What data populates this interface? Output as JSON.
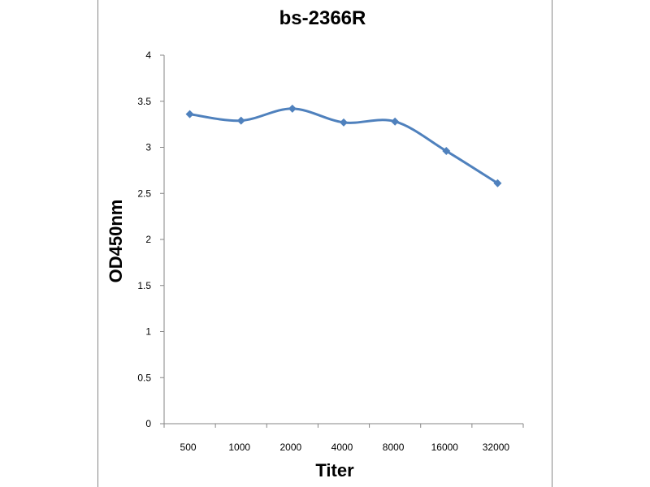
{
  "chart_data": {
    "type": "line",
    "title": "bs-2366R",
    "xlabel": "Titer",
    "ylabel": "OD450nm",
    "categories": [
      "500",
      "1000",
      "2000",
      "4000",
      "8000",
      "16000",
      "32000"
    ],
    "series": [
      {
        "values": [
          3.36,
          3.29,
          3.42,
          3.27,
          3.28,
          2.96,
          2.61
        ]
      }
    ],
    "ylim": [
      0,
      4
    ],
    "yticks": [
      "0",
      "0.5",
      "1",
      "1.5",
      "2",
      "2.5",
      "3",
      "3.5",
      "4"
    ],
    "grid": false,
    "legend": "none",
    "colors": {
      "series": "#4F81BD",
      "axis": "#868686"
    }
  }
}
